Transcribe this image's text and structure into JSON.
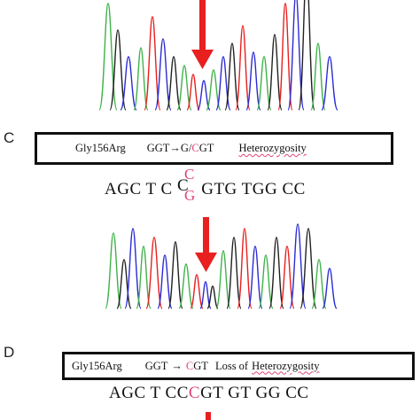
{
  "panels": [
    {
      "letter": "C"
    },
    {
      "letter": "D"
    }
  ],
  "panel_c": {
    "box": {
      "mutation": "Gly156Arg",
      "change_a": "GGT",
      "arrow": "→",
      "change_b": "G/",
      "change_c": "C",
      "change_d": "GT",
      "status": "Heterozygosity"
    },
    "seq": {
      "part1": "AGC T C ",
      "top": "C",
      "mid": "C",
      "bottom": "G",
      "part2": " GTG TGG CC"
    }
  },
  "panel_d": {
    "box": {
      "mutation": "Gly156Arg",
      "change_a": "GGT",
      "arrow": "→",
      "change_b": "C",
      "change_c": "GT",
      "status_a": "Loss of",
      "status_b": "Heterozygosity"
    },
    "seq": {
      "part1": "AGC T CC",
      "mut": "C",
      "part2": "GT GT GG CC"
    }
  },
  "colors": {
    "arrow": "#e8201f",
    "trace_green": "#3fb24a",
    "trace_blue": "#2b2bd6",
    "trace_black": "#222222",
    "trace_red": "#e8201f",
    "highlight": "#e0457b"
  },
  "icons": [
    "down-arrow-icon"
  ]
}
